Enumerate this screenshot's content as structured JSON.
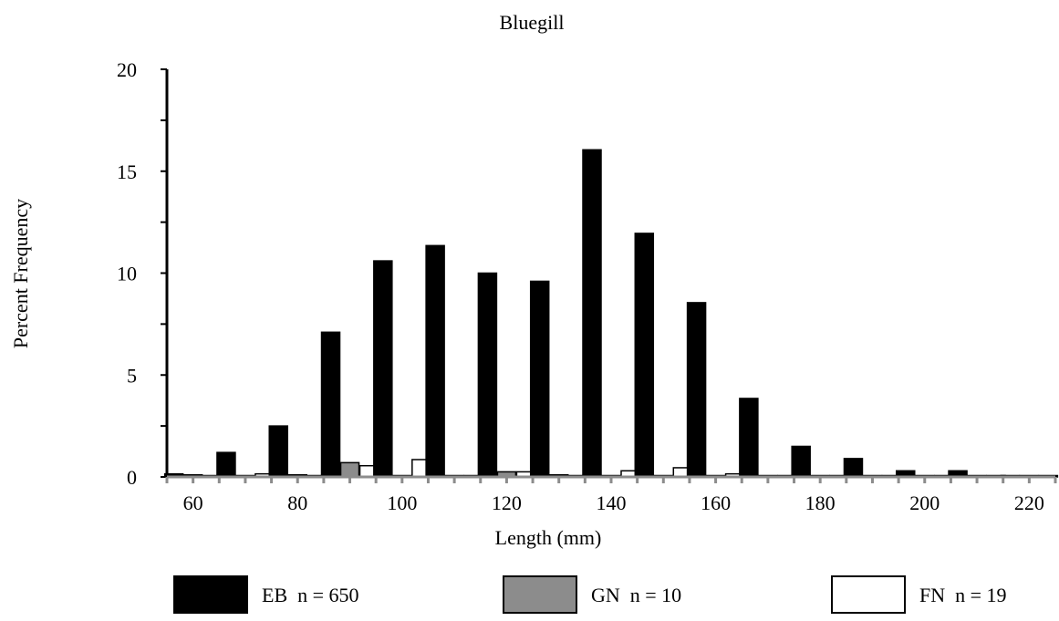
{
  "chart_data": {
    "type": "bar",
    "title": "Bluegill",
    "xlabel": "Length (mm)",
    "ylabel": "Percent Frequency",
    "ylim": [
      0,
      20
    ],
    "yticks": [
      0,
      5,
      10,
      15,
      20
    ],
    "xtick_labels": [
      "60",
      "80",
      "100",
      "120",
      "140",
      "160",
      "180",
      "200",
      "220"
    ],
    "categories": [
      60,
      70,
      80,
      90,
      100,
      110,
      120,
      130,
      140,
      150,
      160,
      170,
      180,
      190,
      200,
      210,
      220
    ],
    "legend_position": "bottom",
    "series": [
      {
        "name": "EB  n = 650",
        "color": "#000000",
        "values": [
          0.15,
          1.2,
          2.5,
          7.1,
          10.6,
          11.35,
          10.0,
          9.6,
          16.05,
          11.95,
          8.55,
          3.85,
          1.5,
          0.9,
          0.3,
          0.3,
          0.0
        ]
      },
      {
        "name": "GN  n = 10",
        "color": "#8c8c8c",
        "values": [
          0.1,
          0,
          0.1,
          0.7,
          0,
          0,
          0.25,
          0.1,
          0,
          0,
          0,
          0,
          0,
          0,
          0,
          0,
          0
        ]
      },
      {
        "name": "FN  n = 19",
        "color": "#ffffff",
        "values": [
          0,
          0.15,
          0,
          0.55,
          0.85,
          0,
          0.25,
          0,
          0.3,
          0.45,
          0.15,
          0,
          0,
          0,
          0,
          0,
          0
        ]
      }
    ]
  }
}
